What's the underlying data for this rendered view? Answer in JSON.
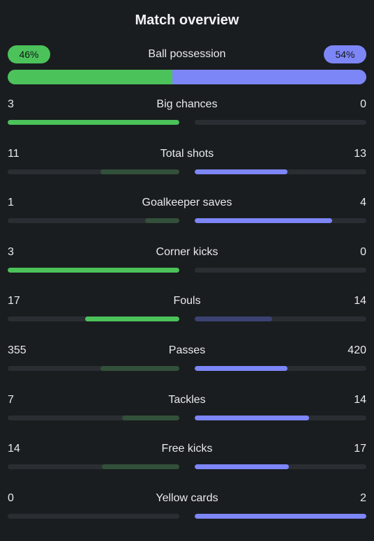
{
  "header": {
    "title": "Match overview"
  },
  "possession": {
    "label": "Ball possession",
    "home_text": "46%",
    "away_text": "54%",
    "home_value": 46,
    "away_value": 54
  },
  "colors": {
    "home_strong": "#4cc35a",
    "home_weak": "#32503a",
    "away_strong": "#7d86f7",
    "away_weak": "#3b4272",
    "track": "#2a2e33",
    "background": "#1a1d20"
  },
  "stats": [
    {
      "label": "Big chances",
      "home": "3",
      "away": "0",
      "home_value": 3,
      "away_value": 0
    },
    {
      "label": "Total shots",
      "home": "11",
      "away": "13",
      "home_value": 11,
      "away_value": 13
    },
    {
      "label": "Goalkeeper saves",
      "home": "1",
      "away": "4",
      "home_value": 1,
      "away_value": 4
    },
    {
      "label": "Corner kicks",
      "home": "3",
      "away": "0",
      "home_value": 3,
      "away_value": 0
    },
    {
      "label": "Fouls",
      "home": "17",
      "away": "14",
      "home_value": 17,
      "away_value": 14
    },
    {
      "label": "Passes",
      "home": "355",
      "away": "420",
      "home_value": 355,
      "away_value": 420
    },
    {
      "label": "Tackles",
      "home": "7",
      "away": "14",
      "home_value": 7,
      "away_value": 14
    },
    {
      "label": "Free kicks",
      "home": "14",
      "away": "17",
      "home_value": 14,
      "away_value": 17
    },
    {
      "label": "Yellow cards",
      "home": "0",
      "away": "2",
      "home_value": 0,
      "away_value": 2
    }
  ]
}
